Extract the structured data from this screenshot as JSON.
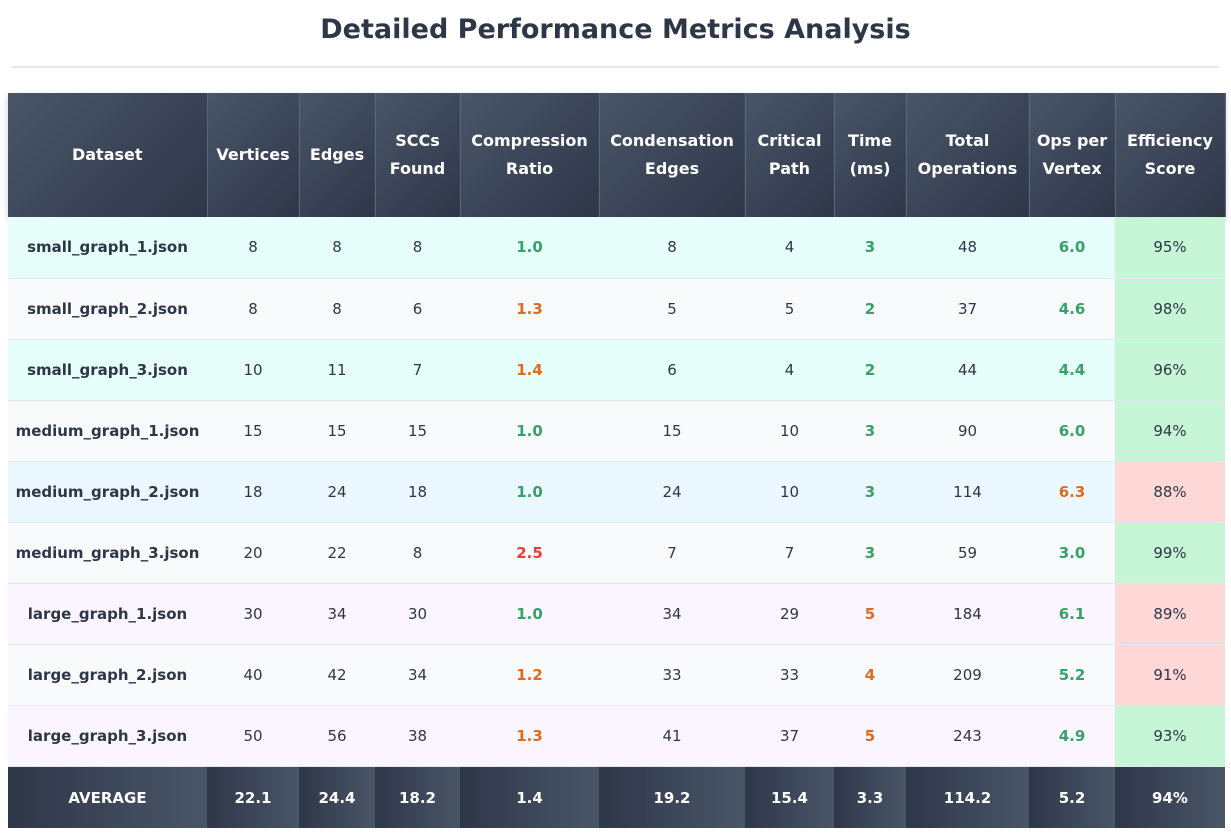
{
  "title": "Detailed Performance Metrics Analysis",
  "colors": {
    "good": "#38a169",
    "warn": "#dd6b20",
    "bad": "#e53e3e",
    "eff_good_bg": "#c6f6d5",
    "eff_bad_bg": "#fed7d7"
  },
  "headers": [
    "Dataset",
    "Vertices",
    "Edges",
    "SCCs Found",
    "Compression Ratio",
    "Condensation Edges",
    "Critical Path",
    "Time (ms)",
    "Total Operations",
    "Ops per Vertex",
    "Efficiency Score"
  ],
  "rows": [
    {
      "tint": "mint",
      "dataset": "small_graph_1.json",
      "vertices": "8",
      "edges": "8",
      "sccs": "8",
      "ratio": "1.0",
      "ratio_color": "green",
      "cond_edges": "8",
      "critical": "4",
      "time": "3",
      "time_color": "green",
      "ops": "48",
      "opv": "6.0",
      "opv_color": "green",
      "eff": "95%",
      "eff_status": "good"
    },
    {
      "tint": "gray",
      "dataset": "small_graph_2.json",
      "vertices": "8",
      "edges": "8",
      "sccs": "6",
      "ratio": "1.3",
      "ratio_color": "orange",
      "cond_edges": "5",
      "critical": "5",
      "time": "2",
      "time_color": "green",
      "ops": "37",
      "opv": "4.6",
      "opv_color": "green",
      "eff": "98%",
      "eff_status": "good"
    },
    {
      "tint": "mint",
      "dataset": "small_graph_3.json",
      "vertices": "10",
      "edges": "11",
      "sccs": "7",
      "ratio": "1.4",
      "ratio_color": "orange",
      "cond_edges": "6",
      "critical": "4",
      "time": "2",
      "time_color": "green",
      "ops": "44",
      "opv": "4.4",
      "opv_color": "green",
      "eff": "96%",
      "eff_status": "good"
    },
    {
      "tint": "gray",
      "dataset": "medium_graph_1.json",
      "vertices": "15",
      "edges": "15",
      "sccs": "15",
      "ratio": "1.0",
      "ratio_color": "green",
      "cond_edges": "15",
      "critical": "10",
      "time": "3",
      "time_color": "green",
      "ops": "90",
      "opv": "6.0",
      "opv_color": "green",
      "eff": "94%",
      "eff_status": "good"
    },
    {
      "tint": "blue",
      "dataset": "medium_graph_2.json",
      "vertices": "18",
      "edges": "24",
      "sccs": "18",
      "ratio": "1.0",
      "ratio_color": "green",
      "cond_edges": "24",
      "critical": "10",
      "time": "3",
      "time_color": "green",
      "ops": "114",
      "opv": "6.3",
      "opv_color": "orange",
      "eff": "88%",
      "eff_status": "bad"
    },
    {
      "tint": "gray",
      "dataset": "medium_graph_3.json",
      "vertices": "20",
      "edges": "22",
      "sccs": "8",
      "ratio": "2.5",
      "ratio_color": "red",
      "cond_edges": "7",
      "critical": "7",
      "time": "3",
      "time_color": "green",
      "ops": "59",
      "opv": "3.0",
      "opv_color": "green",
      "eff": "99%",
      "eff_status": "good"
    },
    {
      "tint": "lav",
      "dataset": "large_graph_1.json",
      "vertices": "30",
      "edges": "34",
      "sccs": "30",
      "ratio": "1.0",
      "ratio_color": "green",
      "cond_edges": "34",
      "critical": "29",
      "time": "5",
      "time_color": "orange",
      "ops": "184",
      "opv": "6.1",
      "opv_color": "green",
      "eff": "89%",
      "eff_status": "bad"
    },
    {
      "tint": "gray",
      "dataset": "large_graph_2.json",
      "vertices": "40",
      "edges": "42",
      "sccs": "34",
      "ratio": "1.2",
      "ratio_color": "orange",
      "cond_edges": "33",
      "critical": "33",
      "time": "4",
      "time_color": "orange",
      "ops": "209",
      "opv": "5.2",
      "opv_color": "green",
      "eff": "91%",
      "eff_status": "bad"
    },
    {
      "tint": "lav",
      "dataset": "large_graph_3.json",
      "vertices": "50",
      "edges": "56",
      "sccs": "38",
      "ratio": "1.3",
      "ratio_color": "orange",
      "cond_edges": "41",
      "critical": "37",
      "time": "5",
      "time_color": "orange",
      "ops": "243",
      "opv": "4.9",
      "opv_color": "green",
      "eff": "93%",
      "eff_status": "good"
    }
  ],
  "footer": [
    "AVERAGE",
    "22.1",
    "24.4",
    "18.2",
    "1.4",
    "19.2",
    "15.4",
    "3.3",
    "114.2",
    "5.2",
    "94%"
  ]
}
